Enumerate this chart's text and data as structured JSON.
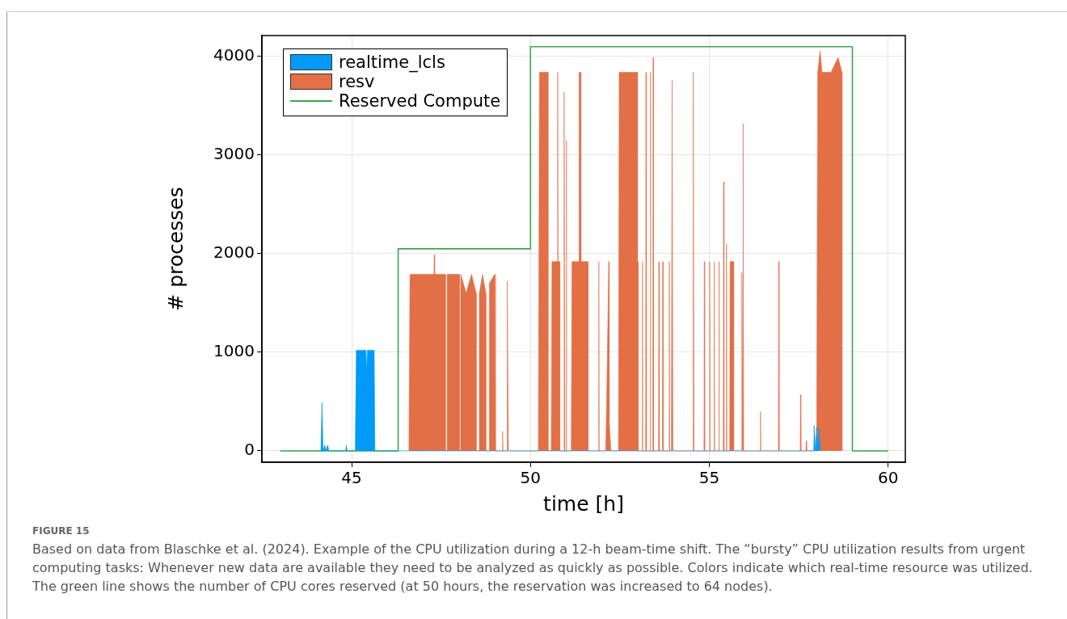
{
  "chart_data": {
    "type": "area",
    "xlabel": "time [h]",
    "ylabel": "# processes",
    "xlim": [
      42.49,
      60.48
    ],
    "xticks": [
      45,
      50,
      55,
      60
    ],
    "ylim": [
      -115,
      4213
    ],
    "yticks": [
      0,
      1000,
      2000,
      3000,
      4000
    ],
    "grid": true,
    "legend": "top left",
    "series": [
      {
        "name": "realtime_lcls",
        "color": "#009af9",
        "x": [
          44.14,
          44.17,
          44.2,
          44.25,
          44.28,
          44.33,
          44.36,
          44.83,
          44.85,
          44.87,
          45.1,
          45.13,
          45.4,
          45.42,
          45.44,
          45.63,
          45.65,
          57.92,
          57.93,
          57.97,
          58.0,
          58.03,
          58.06,
          58.1
        ],
        "values": [
          0,
          490,
          0,
          60,
          0,
          60,
          0,
          0,
          60,
          0,
          0,
          1020,
          1020,
          800,
          1020,
          1020,
          0,
          0,
          260,
          0,
          240,
          0,
          230,
          0
        ]
      },
      {
        "name": "resv",
        "color": "#e26f46",
        "x": [
          46.6,
          46.63,
          47.3,
          47.31,
          47.32,
          47.62,
          47.62,
          47.67,
          47.67,
          48.01,
          48.01,
          48.05,
          48.05,
          48.2,
          48.35,
          48.48,
          48.48,
          48.57,
          48.57,
          48.66,
          48.75,
          48.75,
          48.85,
          48.85,
          49.0,
          49.02,
          49.02,
          49.21,
          49.22,
          49.23,
          49.34,
          49.35,
          49.38,
          50.22,
          50.25,
          50.49,
          50.49,
          50.58,
          50.6,
          50.75,
          50.76,
          50.77,
          50.82,
          50.82,
          50.92,
          50.94,
          50.96,
          50.99,
          51.0,
          51.01,
          51.14,
          51.16,
          51.35,
          51.36,
          51.4,
          51.41,
          51.61,
          51.61,
          51.9,
          51.91,
          51.92,
          52.1,
          52.12,
          52.19,
          52.2,
          52.25,
          52.46,
          52.48,
          52.99,
          52.99,
          53.01,
          53.01,
          53.12,
          53.13,
          53.14,
          53.22,
          53.23,
          53.24,
          53.34,
          53.35,
          53.36,
          53.42,
          53.43,
          53.44,
          53.58,
          53.59,
          53.6,
          53.69,
          53.7,
          53.71,
          53.87,
          53.88,
          53.89,
          53.94,
          53.96,
          53.98,
          54.54,
          54.55,
          54.57,
          54.85,
          54.86,
          54.87,
          55.0,
          55.01,
          55.02,
          55.13,
          55.14,
          55.15,
          55.26,
          55.27,
          55.28,
          55.39,
          55.4,
          55.41,
          55.47,
          55.48,
          55.49,
          55.57,
          55.58,
          55.68,
          55.68,
          55.9,
          55.91,
          55.94,
          55.945,
          55.96,
          56.42,
          56.43,
          56.44,
          56.93,
          56.94,
          56.95,
          57.54,
          57.55,
          57.56,
          57.7,
          57.71,
          57.72,
          58.0,
          58.03,
          58.1,
          58.15,
          58.4,
          58.6,
          58.71,
          58.71
        ],
        "values": [
          0,
          1790,
          1790,
          1990,
          1790,
          1790,
          0,
          0,
          1790,
          1790,
          0,
          0,
          1790,
          1600,
          1790,
          1600,
          0,
          0,
          1600,
          1790,
          1600,
          0,
          0,
          1700,
          1790,
          1790,
          0,
          0,
          200,
          0,
          0,
          1720,
          0,
          0,
          3840,
          3840,
          0,
          0,
          1920,
          1920,
          3840,
          1920,
          1920,
          0,
          0,
          3640,
          0,
          0,
          3150,
          0,
          0,
          1920,
          1920,
          3840,
          3840,
          1920,
          1920,
          0,
          0,
          1920,
          0,
          0,
          300,
          1920,
          300,
          0,
          0,
          3840,
          3840,
          1920,
          1920,
          0,
          0,
          1920,
          0,
          0,
          3840,
          0,
          0,
          3840,
          0,
          0,
          3990,
          0,
          0,
          1920,
          0,
          0,
          1920,
          0,
          0,
          1920,
          0,
          0,
          3760,
          0,
          0,
          3840,
          0,
          0,
          1920,
          0,
          0,
          1920,
          0,
          0,
          1920,
          0,
          0,
          1920,
          0,
          0,
          2730,
          0,
          0,
          2100,
          0,
          0,
          1920,
          1920,
          0,
          0,
          1810,
          0,
          3320,
          0,
          0,
          400,
          0,
          0,
          1920,
          0,
          0,
          570,
          0,
          0,
          100,
          0,
          0,
          3840,
          4060,
          3840,
          3840,
          3990,
          3840,
          0
        ]
      },
      {
        "name": "Reserved Compute",
        "type": "line",
        "color": "#3ea44e",
        "x": [
          43,
          46.3,
          46.3,
          50,
          50,
          59,
          59,
          60
        ],
        "values": [
          0,
          0,
          2050,
          2050,
          4100,
          4100,
          0,
          0
        ]
      }
    ],
    "annotations": [
      "FIGURE 15",
      "Based on data from Blaschke et al. (2024). Example of the CPU utilization during a 12-h beam-time shift. The “bursty” CPU utilization results from urgent computing tasks: Whenever new data are available they need to be analyzed as quickly as possible. Colors indicate which real-time resource was utilized. The green line shows the number of CPU cores reserved (at 50 hours, the reservation was increased to 64 nodes)."
    ]
  }
}
